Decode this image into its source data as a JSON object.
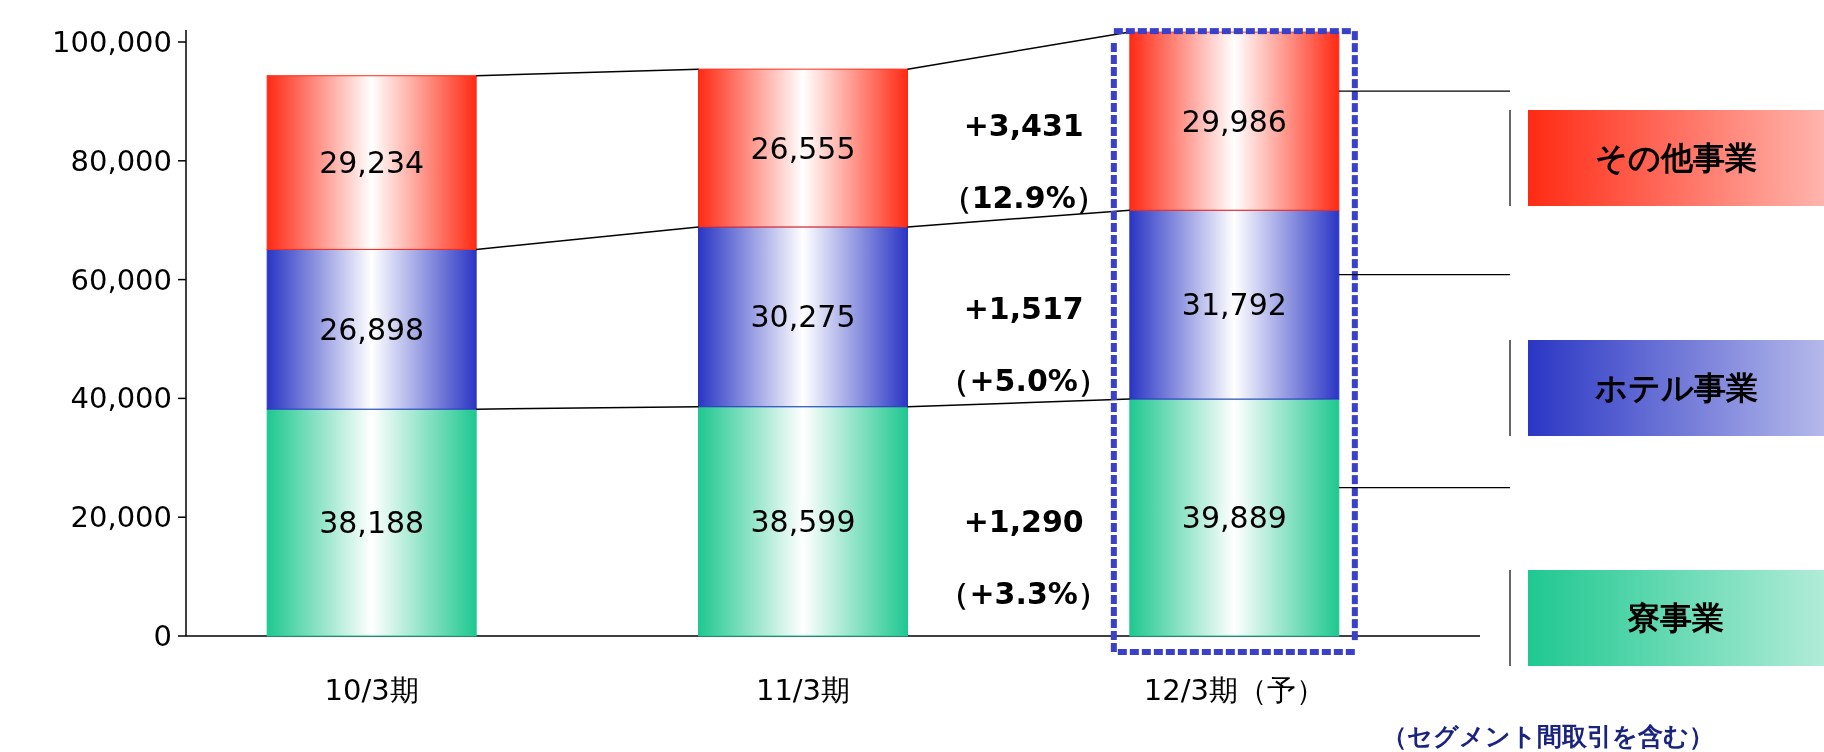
{
  "chart_data": {
    "type": "bar",
    "stacked": true,
    "categories": [
      "10/3期",
      "11/3期",
      "12/3期（予）"
    ],
    "series": [
      {
        "name": "寮事業",
        "color": "#1fc890",
        "values": [
          38188,
          38599,
          39889
        ],
        "value_labels": [
          "38,188",
          "38,599",
          "39,889"
        ]
      },
      {
        "name": "ホテル事業",
        "color": "#2a36c4",
        "values": [
          26898,
          30275,
          31792
        ],
        "value_labels": [
          "26,898",
          "30,275",
          "31,792"
        ]
      },
      {
        "name": "その他事業",
        "color": "#ff2a14",
        "values": [
          29234,
          26555,
          29986
        ],
        "value_labels": [
          "29,234",
          "26,555",
          "29,986"
        ]
      }
    ],
    "ylim": [
      0,
      102000
    ],
    "yticks": [
      {
        "value": 0,
        "label": "0"
      },
      {
        "value": 20000,
        "label": "20,000"
      },
      {
        "value": 40000,
        "label": "40,000"
      },
      {
        "value": 60000,
        "label": "60,000"
      },
      {
        "value": 80000,
        "label": "80,000"
      },
      {
        "value": 100000,
        "label": "100,000"
      }
    ],
    "grid": false,
    "legend": "right",
    "annotations": [
      "+1,290",
      "（+3.3%）",
      "+1,517",
      "（+5.0%）",
      "+3,431",
      "（12.9%）",
      "（セグメント間取引を含む）"
    ]
  }
}
